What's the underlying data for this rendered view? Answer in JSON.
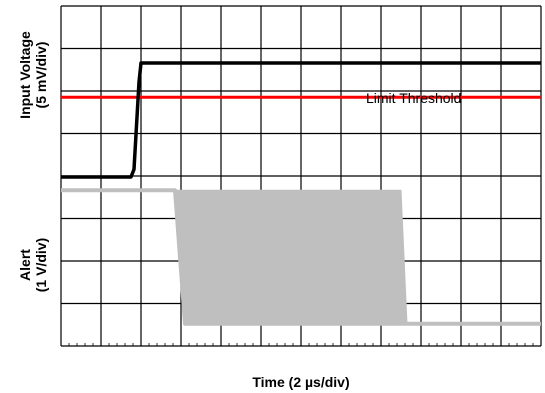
{
  "chart_data": {
    "type": "line",
    "title": "",
    "xlabel": "Time (2 µs/div)",
    "x_units": "µs",
    "x_per_div": 2,
    "xlim": [
      0,
      24
    ],
    "grid": true,
    "grid_divisions": {
      "x": 12,
      "y": 8
    },
    "panels": [
      {
        "ylabel_lines": [
          "Input Voltage",
          "(5 mV/div)"
        ],
        "y_units": "div",
        "ylim": [
          0,
          4.5
        ],
        "series": [
          {
            "name": "",
            "color": "#000000",
            "points": [
              [
                0,
                0
              ],
              [
                3.5,
                0
              ],
              [
                3.65,
                0.2
              ],
              [
                3.9,
                2.5
              ],
              [
                4.0,
                3
              ],
              [
                24,
                3
              ]
            ]
          }
        ],
        "reference_lines": [
          {
            "name": "Limit Threshold",
            "y": 2.1,
            "color": "#ff0000"
          }
        ],
        "annotations": [
          {
            "text": "Limit Threshold",
            "x": 16,
            "y": 1.4
          }
        ]
      },
      {
        "ylabel_lines": [
          "Alert",
          "(1 V/div)"
        ],
        "y_units": "div",
        "ylim": [
          -0.5,
          3.5
        ],
        "series": [
          {
            "name": "",
            "color": "#bfbfbf",
            "style": "line",
            "points": [
              [
                0,
                3
              ],
              [
                5.7,
                3
              ],
              [
                6.2,
                0
              ],
              [
                24,
                0
              ]
            ]
          },
          {
            "name": "",
            "color": "#bfbfbf",
            "style": "oscillation-band",
            "x_range": [
              5.7,
              17.0
            ],
            "y_range": [
              0,
              3
            ]
          }
        ]
      }
    ]
  }
}
